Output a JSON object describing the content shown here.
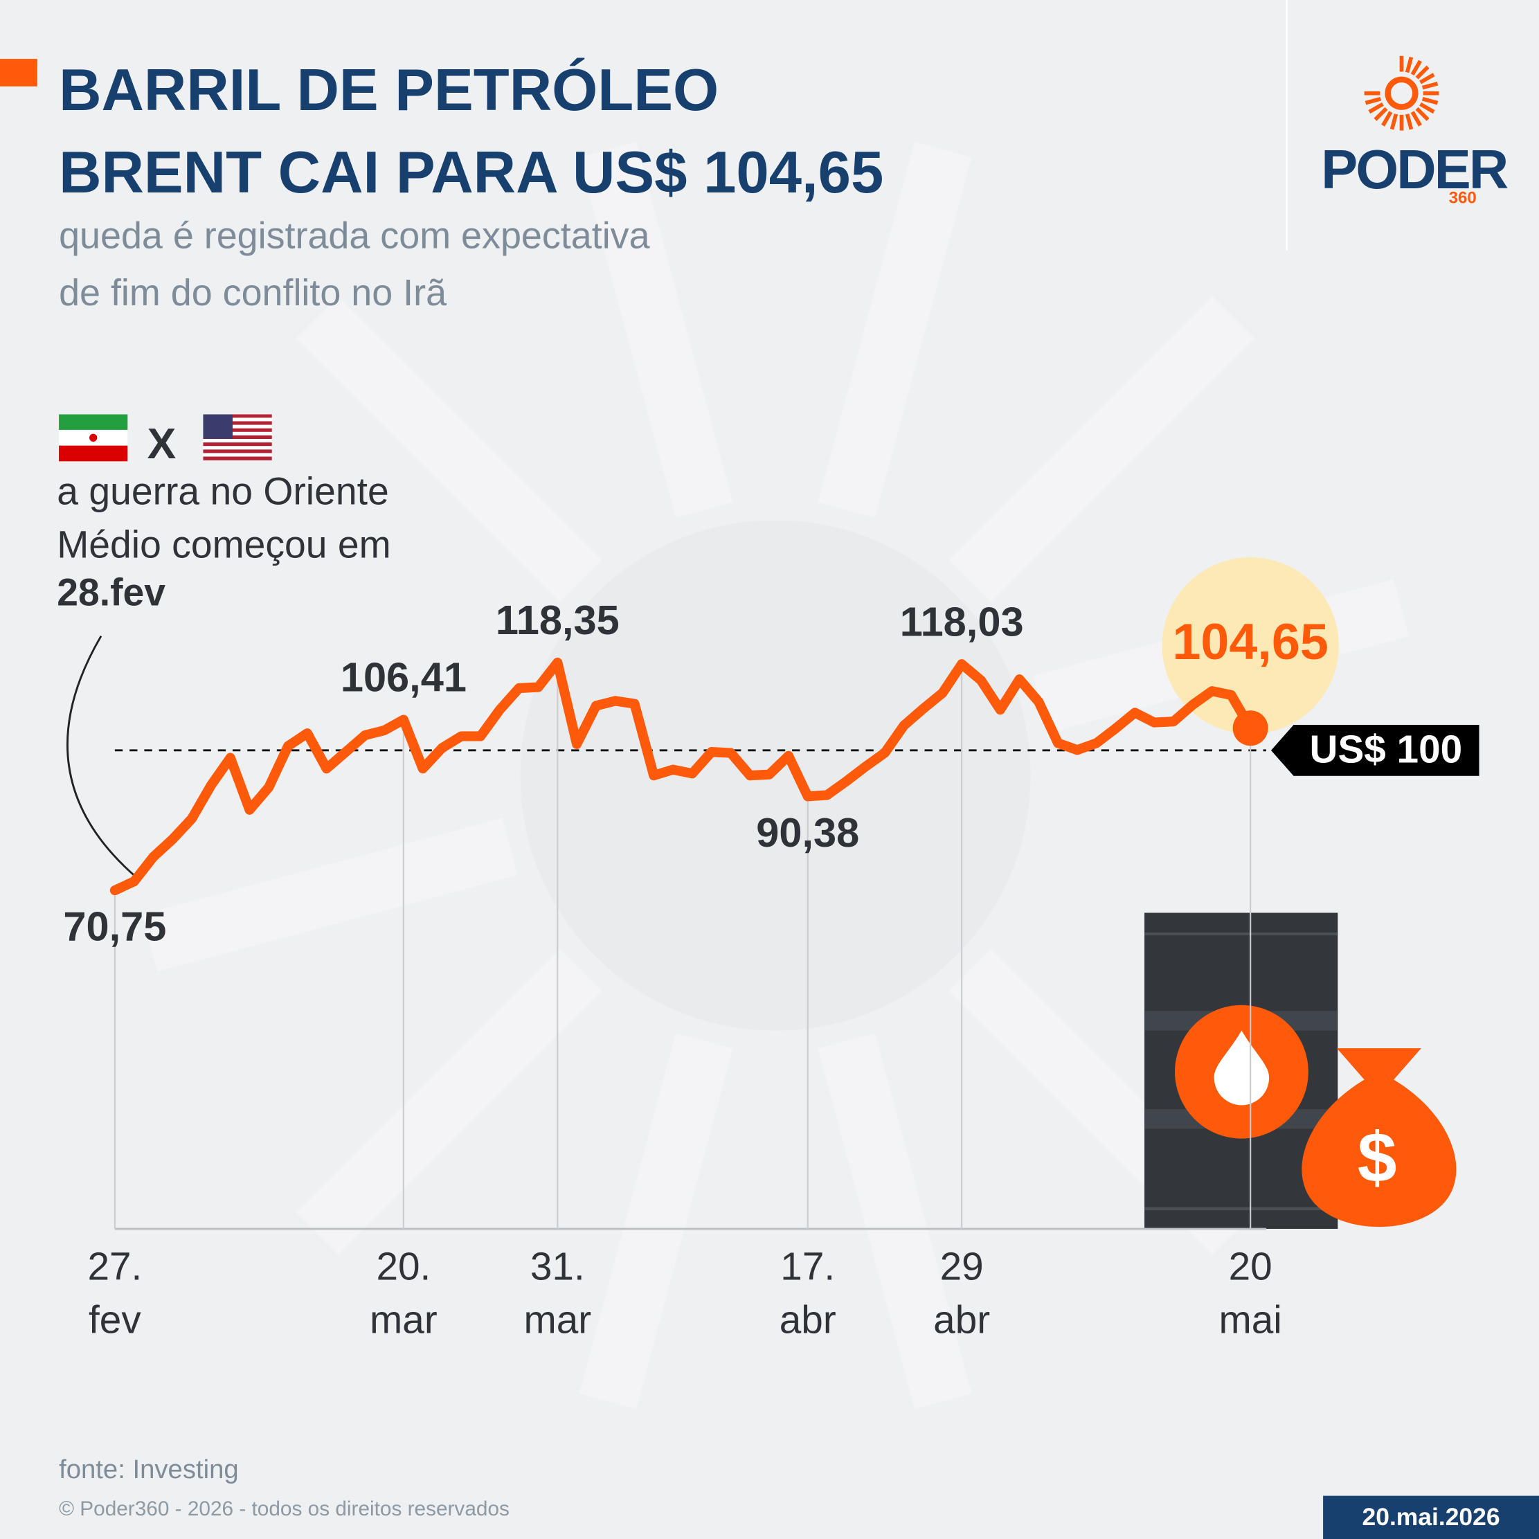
{
  "header": {
    "title": "BARRIL DE PETRÓLEO\nBRENT CAI PARA US$ 104,65",
    "subtitle": "queda é registrada com expectativa\nde fim do conflito no Irã"
  },
  "logo": {
    "name": "PODER",
    "number": "360"
  },
  "annotation": {
    "versus": "X",
    "text": "a guerra no Oriente\nMédio começou em",
    "date": "28.fev"
  },
  "chart_data": {
    "type": "line",
    "categories": [
      "27.\nfev",
      null,
      null,
      null,
      null,
      null,
      null,
      null,
      null,
      null,
      null,
      null,
      null,
      null,
      null,
      "20.\nmar",
      null,
      null,
      null,
      null,
      null,
      null,
      null,
      "31.\nmar",
      null,
      null,
      null,
      null,
      null,
      null,
      null,
      null,
      null,
      null,
      null,
      null,
      "17.\nabr",
      null,
      null,
      null,
      null,
      null,
      null,
      null,
      "29\nabr",
      null,
      null,
      null,
      null,
      null,
      null,
      null,
      null,
      null,
      null,
      null,
      null,
      null,
      null,
      "20\nmai"
    ],
    "series": [
      {
        "color": "#ff5a0a",
        "values": [
          70.75,
          72.6,
          77.73,
          81.42,
          85.73,
          92.7,
          98.44,
          87.57,
          92.29,
          100.9,
          103.57,
          96.19,
          99.67,
          103.16,
          104.18,
          106.41,
          96.19,
          100.49,
          102.95,
          102.95,
          108.49,
          113.0,
          113.21,
          118.35,
          101.31,
          109.31,
          110.34,
          109.72,
          94.75,
          95.98,
          95.16,
          99.67,
          99.47,
          94.75,
          94.96,
          98.85,
          90.38,
          90.65,
          93.52,
          96.6,
          99.47,
          105.21,
          108.7,
          111.98,
          118.03,
          114.64,
          108.49,
          114.85,
          110.13,
          101.52,
          100.08,
          101.52,
          104.59,
          107.88,
          105.83,
          106.03,
          109.52,
          112.39,
          111.57,
          104.65
        ],
        "value_labels": [
          "70,75",
          null,
          null,
          null,
          null,
          null,
          null,
          null,
          null,
          null,
          null,
          null,
          null,
          null,
          null,
          "106,41",
          null,
          null,
          null,
          null,
          null,
          null,
          null,
          "118,35",
          null,
          null,
          null,
          null,
          null,
          null,
          null,
          null,
          null,
          null,
          null,
          null,
          "90,38",
          null,
          null,
          null,
          null,
          null,
          null,
          null,
          "118,03",
          null,
          null,
          null,
          null,
          null,
          null,
          null,
          null,
          null,
          null,
          null,
          null,
          null,
          null,
          "104,65"
        ]
      }
    ],
    "ylim": [
      0,
      120
    ],
    "reference": {
      "value": 100,
      "label": "US$ 100"
    }
  },
  "footer": {
    "source": "fonte: Investing",
    "copyright": "© Poder360 - 2026 - todos os direitos reservados",
    "date": "20.mai.2026"
  }
}
